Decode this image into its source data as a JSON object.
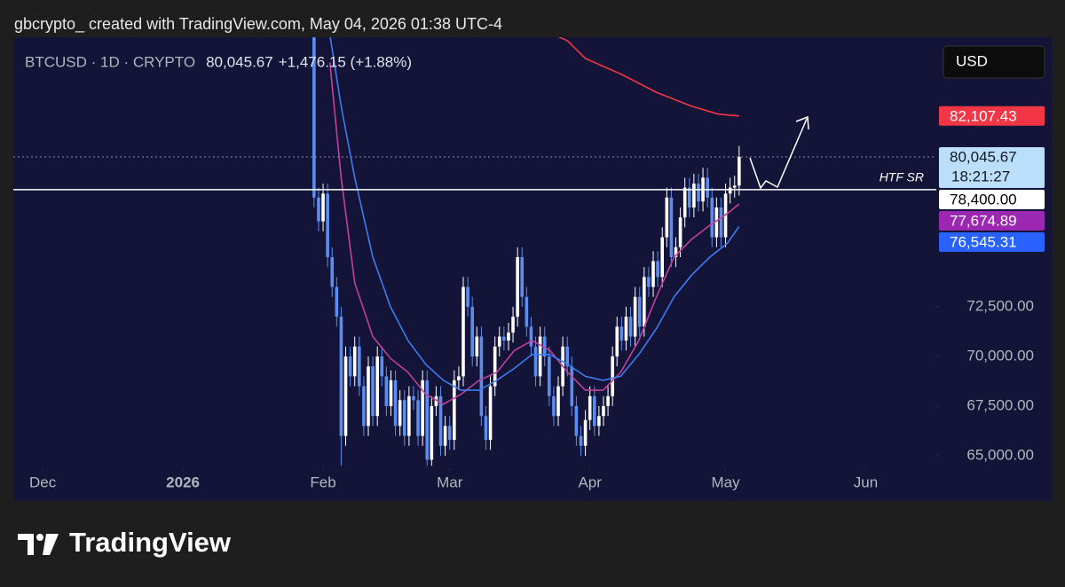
{
  "header": {
    "author_line": "gbcrypto_ created with TradingView.com, May 04, 2026 01:38 UTC-4",
    "symbol": "BTCUSD · 1D · CRYPTO",
    "change": "+1,476.15 (+1.88%)",
    "currency": "USD",
    "brand": "TradingView"
  },
  "chart_data": {
    "type": "candlestick",
    "up_color": "#ffffff",
    "down_color": "#5b8def",
    "xlim": [
      -65.5,
      138.6
    ],
    "xticks": [
      {
        "value": -59,
        "label": "Dec"
      },
      {
        "value": -28,
        "label": "2026",
        "bold": true
      },
      {
        "value": 3,
        "label": "Feb"
      },
      {
        "value": 31,
        "label": "Mar"
      },
      {
        "value": 62,
        "label": "Apr"
      },
      {
        "value": 92,
        "label": "May"
      },
      {
        "value": 123,
        "label": "Jun"
      }
    ],
    "ylim": [
      64375,
      86071
    ],
    "yticks": [
      {
        "value": 65000,
        "label": "65,000.00"
      },
      {
        "value": 67500,
        "label": "67,500.00"
      },
      {
        "value": 70000,
        "label": "70,000.00"
      },
      {
        "value": 72500,
        "label": "72,500.00"
      }
    ],
    "candles": {
      "open": [
        87500,
        86800,
        78000,
        76800,
        78200,
        75000,
        73500,
        72000,
        66000,
        70000,
        69000,
        70500,
        68500,
        66500,
        69500,
        67000,
        70000,
        69000,
        67500,
        68800,
        66500,
        67800,
        66000,
        68000,
        67800,
        66000,
        68800,
        64800,
        67500,
        68000,
        65500,
        66500,
        65800,
        68800,
        69000,
        73500,
        72500,
        70000,
        71000,
        67000,
        65800,
        68500,
        70500,
        71000,
        70800,
        71200,
        72000,
        75000,
        73000,
        71500,
        70500,
        69000,
        71000,
        70000,
        68000,
        67000,
        68500,
        70500,
        69500,
        67500,
        66000,
        65500,
        66800,
        68000,
        66500,
        67000,
        67500,
        68000,
        70000,
        71500,
        70800,
        72000,
        71000,
        73000,
        71500,
        74000,
        73500,
        74800,
        74000,
        76000,
        78000,
        75000,
        75500,
        77000,
        78500,
        77500,
        78700,
        77800,
        79000,
        78000,
        76000,
        77500,
        76000,
        78200,
        78500,
        78600
      ],
      "high": [
        88000,
        87300,
        78500,
        78700,
        78700,
        75500,
        74000,
        72500,
        70500,
        70500,
        71000,
        71000,
        69000,
        70000,
        70000,
        70500,
        70500,
        69500,
        69300,
        69300,
        68300,
        68300,
        68500,
        68500,
        68300,
        69300,
        69300,
        68000,
        68500,
        68500,
        67000,
        67000,
        69300,
        69500,
        74000,
        74000,
        73000,
        71500,
        71500,
        67500,
        69000,
        71000,
        71500,
        71500,
        71700,
        72500,
        75500,
        75500,
        73500,
        72000,
        71000,
        71500,
        71500,
        70500,
        68500,
        69000,
        71000,
        71000,
        70000,
        68000,
        66500,
        67300,
        68500,
        68500,
        67500,
        68000,
        68500,
        70500,
        72000,
        72000,
        72500,
        72500,
        73500,
        73500,
        74500,
        74500,
        75300,
        75300,
        76500,
        78500,
        78500,
        76000,
        77500,
        79000,
        79000,
        79200,
        79200,
        79500,
        79500,
        78500,
        78000,
        78000,
        78700,
        79000,
        79100,
        80600
      ],
      "low": [
        86300,
        77500,
        76300,
        76300,
        74500,
        73000,
        71500,
        64500,
        65500,
        68500,
        68500,
        68000,
        66000,
        66000,
        66500,
        66500,
        68500,
        67000,
        67000,
        66000,
        66000,
        65500,
        65500,
        67300,
        65500,
        65500,
        64500,
        64500,
        67000,
        65000,
        65000,
        65300,
        65300,
        68300,
        68500,
        72000,
        69500,
        69500,
        66500,
        65300,
        65300,
        68000,
        70000,
        70300,
        70300,
        70700,
        71500,
        72500,
        71000,
        70000,
        68500,
        68500,
        69500,
        67500,
        66500,
        66500,
        68000,
        69000,
        67000,
        65500,
        65000,
        65000,
        66300,
        66000,
        66000,
        66500,
        67000,
        67500,
        69500,
        70300,
        70300,
        70500,
        70500,
        71000,
        71000,
        73000,
        73000,
        73500,
        73500,
        75500,
        74500,
        74500,
        75000,
        76500,
        77000,
        77000,
        77300,
        77300,
        77500,
        75500,
        75500,
        75500,
        75500,
        77700,
        78000,
        78100
      ],
      "close": [
        86800,
        78000,
        76800,
        78200,
        75000,
        73500,
        72000,
        66000,
        70000,
        69000,
        70500,
        68500,
        66500,
        69500,
        67000,
        70000,
        69000,
        67500,
        68800,
        66500,
        67800,
        66000,
        68000,
        67800,
        66000,
        68800,
        64800,
        67500,
        68000,
        65500,
        66500,
        65800,
        68800,
        69000,
        73500,
        72500,
        70000,
        71000,
        67000,
        65800,
        68500,
        70500,
        71000,
        70800,
        71200,
        72000,
        75000,
        73000,
        71500,
        70500,
        69000,
        71000,
        70000,
        68000,
        67000,
        68500,
        70500,
        69500,
        67500,
        66000,
        65500,
        66800,
        68000,
        66500,
        67000,
        67500,
        68000,
        70000,
        71500,
        70800,
        72000,
        71000,
        73000,
        71500,
        74000,
        73500,
        74800,
        74000,
        76000,
        78000,
        75000,
        75500,
        77000,
        78500,
        77500,
        78700,
        77800,
        79000,
        78000,
        76000,
        77500,
        76000,
        78200,
        78500,
        78600,
        80045.67
      ],
      "last_label": "80,045.67",
      "countdown": "18:21:27",
      "label_color": "#bbdefb"
    },
    "lines": [
      {
        "color": "#f23645",
        "x": [
          55,
          57,
          61,
          69,
          76.7,
          84.5,
          90.4,
          95
        ],
        "values": [
          86100,
          85900,
          85000,
          84200,
          83300,
          82600,
          82200,
          82107.43
        ],
        "last_label": "82,107.43"
      },
      {
        "color": "#c2409c",
        "label_color": "#9c27b0",
        "x": [
          4.5,
          7,
          10,
          14,
          17.9,
          21.8,
          25.7,
          29.6,
          33.5,
          37.5,
          41.4,
          45.3,
          49.2,
          53.2,
          57.1,
          61,
          64.9,
          68.8,
          72.8,
          76.7,
          80.6,
          84.5,
          88.5,
          92.4,
          95
        ],
        "values": [
          84800,
          79000,
          73700,
          71000,
          69900,
          69200,
          68100,
          67600,
          68100,
          68800,
          69200,
          70300,
          70800,
          70300,
          69200,
          68300,
          68300,
          69200,
          70800,
          73000,
          75000,
          75900,
          76600,
          77200,
          77674.89
        ],
        "last_label": "77,674.89"
      },
      {
        "color": "#3d7cf0",
        "label_color": "#2962ff",
        "x": [
          4.5,
          7,
          10,
          14,
          17.9,
          21.8,
          25.7,
          29.6,
          33.5,
          37.5,
          41.4,
          45.3,
          49.2,
          53.2,
          57.1,
          61,
          64.9,
          68.8,
          72.8,
          76.7,
          80.6,
          84.5,
          88.5,
          92.4,
          95
        ],
        "values": [
          86200,
          82600,
          79000,
          75000,
          72500,
          70800,
          69600,
          68800,
          68300,
          68300,
          68800,
          69400,
          70100,
          70100,
          69600,
          69000,
          68800,
          69000,
          70100,
          71400,
          73000,
          74100,
          75000,
          75700,
          76545.31
        ],
        "last_label": "76,545.31"
      }
    ],
    "levels": [
      {
        "value": 78400,
        "label": "78,400.00",
        "name": "HTF SR",
        "color": "#ffffff"
      }
    ]
  }
}
